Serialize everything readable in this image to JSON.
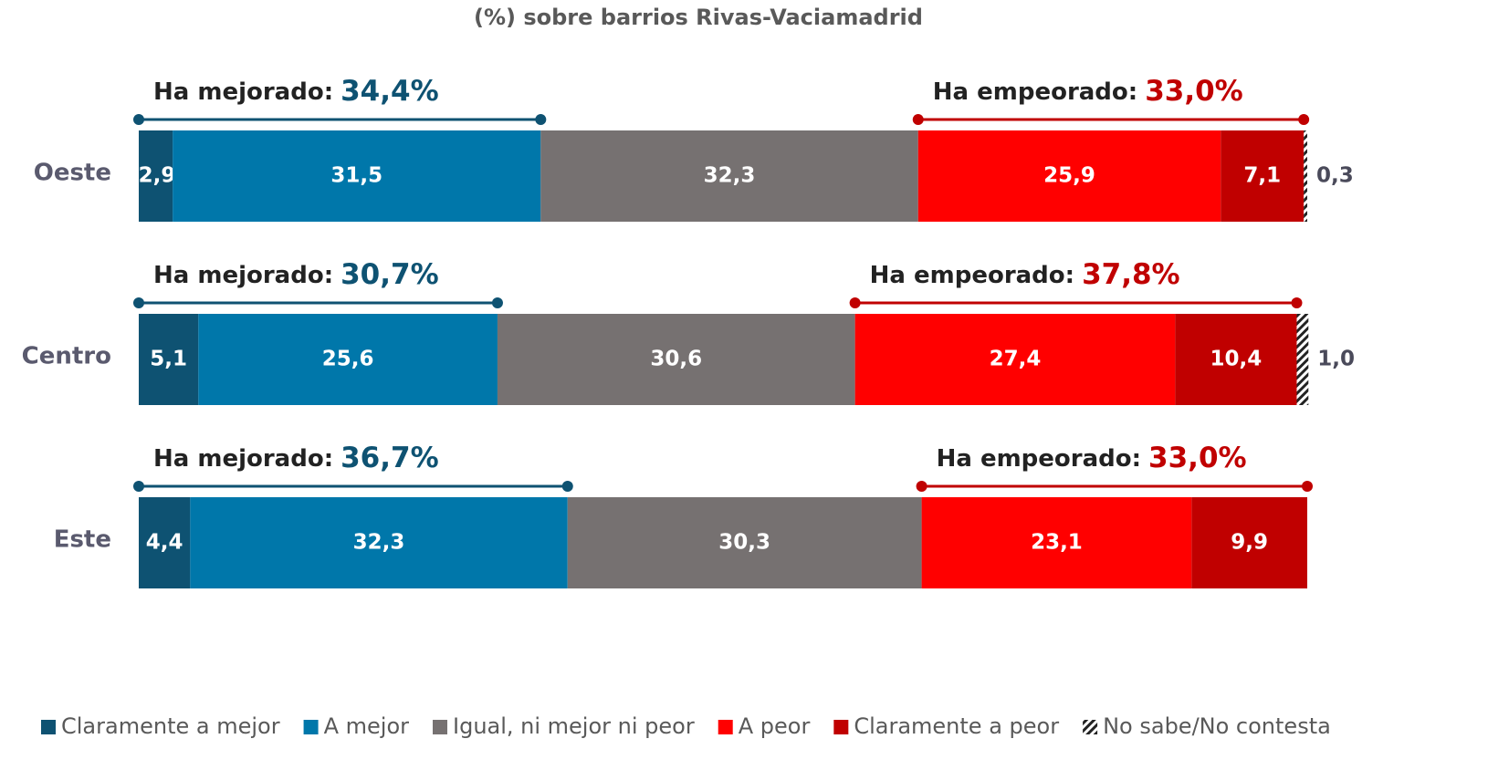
{
  "chart_data": {
    "type": "stacked_barh",
    "title": "(%) sobre barrios Rivas-Vaciamadrid",
    "categories": [
      "Oeste",
      "Centro",
      "Este"
    ],
    "xlim": [
      0,
      100
    ],
    "series": [
      {
        "name": "Claramente a mejor",
        "color": "#0e5272",
        "values": [
          2.9,
          5.1,
          4.4
        ],
        "value_labels": [
          "2,9",
          "5,1",
          "4,4"
        ]
      },
      {
        "name": "A mejor",
        "color": "#0077aa",
        "values": [
          31.5,
          25.6,
          32.3
        ],
        "value_labels": [
          "31,5",
          "25,6",
          "32,3"
        ]
      },
      {
        "name": "Igual, ni mejor ni peor",
        "color": "#767171",
        "values": [
          32.3,
          30.6,
          30.3
        ],
        "value_labels": [
          "32,3",
          "30,6",
          "30,3"
        ]
      },
      {
        "name": "A peor",
        "color": "#ff0000",
        "values": [
          25.9,
          27.4,
          23.1
        ],
        "value_labels": [
          "25,9",
          "27,4",
          "23,1"
        ]
      },
      {
        "name": "Claramente a peor",
        "color": "#c00000",
        "values": [
          7.1,
          10.4,
          9.9
        ],
        "value_labels": [
          "7,1",
          "10,4",
          "9,9"
        ]
      },
      {
        "name": "No sabe/No contesta",
        "color": "hatch",
        "values": [
          0.3,
          1.0,
          null
        ],
        "value_labels": [
          "0,3",
          "1,0",
          null
        ]
      }
    ],
    "annotations": [
      {
        "improved": {
          "label": "Ha mejorado:",
          "value": 34.4,
          "value_label": "34,4%"
        },
        "worsened": {
          "label": "Ha empeorado:",
          "value": 33.0,
          "value_label": "33,0%"
        }
      },
      {
        "improved": {
          "label": "Ha mejorado:",
          "value": 30.7,
          "value_label": "30,7%"
        },
        "worsened": {
          "label": "Ha empeorado:",
          "value": 37.8,
          "value_label": "37,8%"
        }
      },
      {
        "improved": {
          "label": "Ha mejorado:",
          "value": 36.7,
          "value_label": "36,7%"
        },
        "worsened": {
          "label": "Ha empeorado:",
          "value": 33.0,
          "value_label": "33,0%"
        }
      }
    ]
  }
}
